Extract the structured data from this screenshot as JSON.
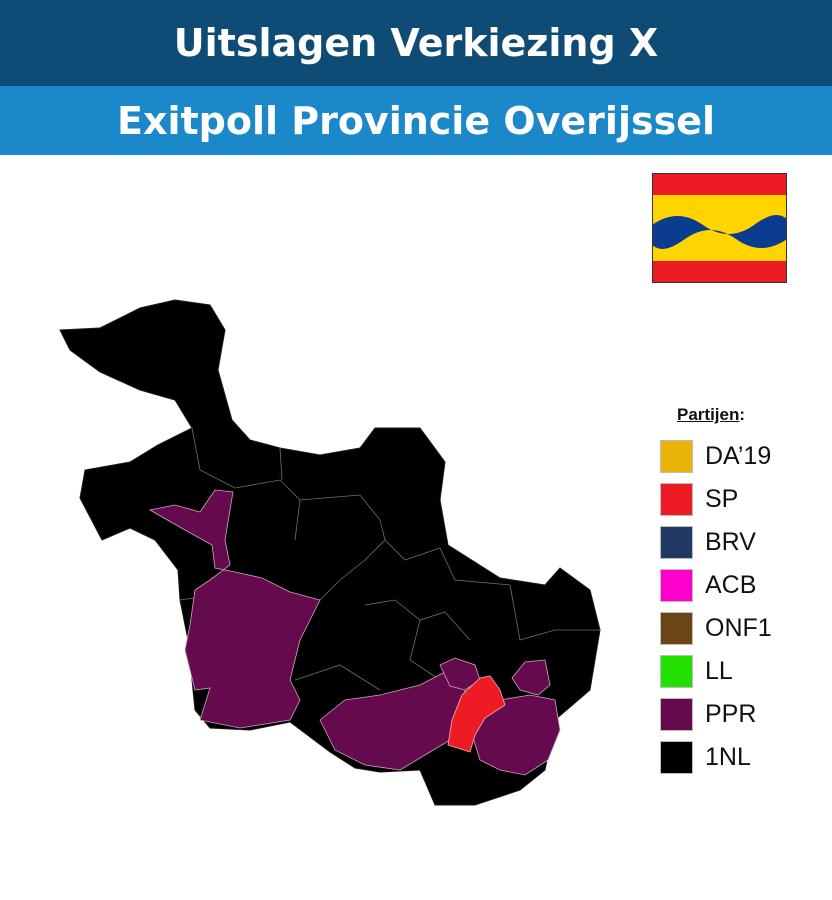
{
  "header": {
    "title": "Uitslagen Verkiezing X",
    "subtitle": "Exitpoll Provincie Overijssel"
  },
  "legend": {
    "title": "Partijen",
    "title_suffix": ":",
    "items": [
      {
        "label": "DA’19",
        "color": "#e9b308"
      },
      {
        "label": "SP",
        "color": "#ed1c24"
      },
      {
        "label": "BRV",
        "color": "#1f3864"
      },
      {
        "label": "ACB",
        "color": "#ff00cc"
      },
      {
        "label": "ONF1",
        "color": "#6b4513"
      },
      {
        "label": "LL",
        "color": "#22e000"
      },
      {
        "label": "PPR",
        "color": "#660a4e"
      },
      {
        "label": "1NL",
        "color": "#000000"
      }
    ]
  },
  "map": {
    "colors": {
      "PPR": "#660a4e",
      "SP": "#ed1c24",
      "1NL": "#000000"
    },
    "flag_colors": {
      "red": "#ed1c24",
      "yellow": "#ffd400",
      "blue": "#0a3d8f"
    }
  }
}
